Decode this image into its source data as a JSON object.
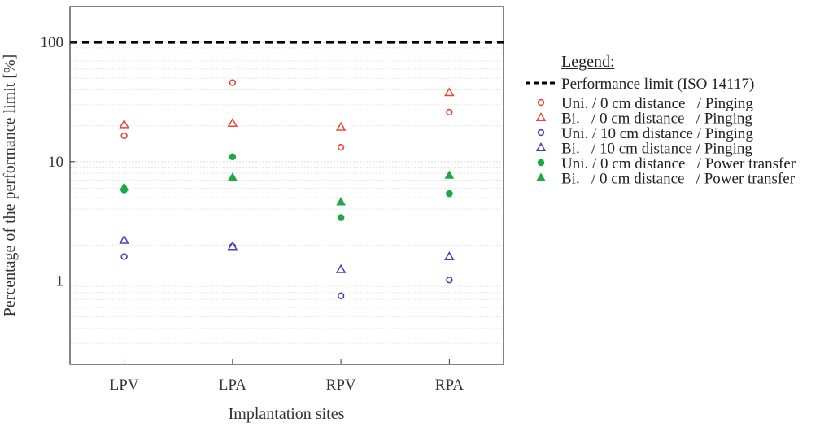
{
  "chart_data": {
    "type": "scatter",
    "yscale": "log",
    "categories": [
      "LPV",
      "LPA",
      "RPV",
      "RPA"
    ],
    "xlabel": "Implantation sites",
    "ylabel": "Percentage of the performance limit [%]",
    "ylim": [
      0.2,
      200
    ],
    "yticks": [
      1,
      10,
      100
    ],
    "ytick_labels": [
      "1",
      "10",
      "100"
    ],
    "reference_line": {
      "value": 100,
      "label": "Performance limit (ISO 14117)",
      "style": "dashed",
      "color": "#000000"
    },
    "legend_title": "Legend:",
    "legend_position": "right",
    "series": [
      {
        "name": "Uni. / 0 cm distance   / Pinging",
        "marker": "circle",
        "color": "#e8463a",
        "values": [
          16.5,
          46,
          13.2,
          26
        ]
      },
      {
        "name": "Bi.   / 0 cm distance   / Pinging",
        "marker": "triangle",
        "color": "#e8463a",
        "values": [
          20.5,
          21,
          19.5,
          38
        ]
      },
      {
        "name": "Uni. / 10 cm distance / Pinging",
        "marker": "circle",
        "color": "#4a3fb8",
        "values": [
          1.6,
          1.95,
          0.75,
          1.02
        ]
      },
      {
        "name": "Bi.   / 10 cm distance / Pinging",
        "marker": "triangle",
        "color": "#4a3fb8",
        "values": [
          2.2,
          1.95,
          1.25,
          1.6
        ]
      },
      {
        "name": "Uni. / 0 cm distance   / Power transfer",
        "marker": "dot",
        "color": "#1fa843",
        "values": [
          5.8,
          11,
          3.4,
          5.4
        ]
      },
      {
        "name": "Bi.   / 0 cm distance   / Power transfer",
        "marker": "filled-triangle",
        "color": "#1fa843",
        "values": [
          6.1,
          7.4,
          4.6,
          7.7
        ]
      }
    ]
  }
}
